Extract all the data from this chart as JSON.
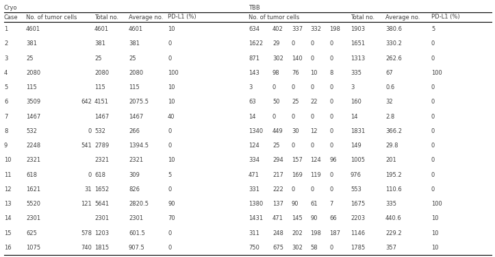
{
  "title_cryo": "Cryo",
  "title_tbb": "TBB",
  "cases": [
    1,
    2,
    3,
    4,
    5,
    6,
    7,
    8,
    9,
    10,
    11,
    12,
    13,
    14,
    15,
    16
  ],
  "cryo_data": [
    [
      "4601",
      "",
      "4601",
      "4601",
      "10"
    ],
    [
      "381",
      "",
      "381",
      "381",
      "0"
    ],
    [
      "25",
      "",
      "25",
      "25",
      "0"
    ],
    [
      "2080",
      "",
      "2080",
      "2080",
      "100"
    ],
    [
      "115",
      "",
      "115",
      "115",
      "10"
    ],
    [
      "3509",
      "642",
      "4151",
      "2075.5",
      "10"
    ],
    [
      "1467",
      "",
      "1467",
      "1467",
      "40"
    ],
    [
      "532",
      "0",
      "532",
      "266",
      "0"
    ],
    [
      "2248",
      "541",
      "2789",
      "1394.5",
      "0"
    ],
    [
      "2321",
      "",
      "2321",
      "2321",
      "10"
    ],
    [
      "618",
      "0",
      "618",
      "309",
      "5"
    ],
    [
      "1621",
      "31",
      "1652",
      "826",
      "0"
    ],
    [
      "5520",
      "121",
      "5641",
      "2820.5",
      "90"
    ],
    [
      "2301",
      "",
      "2301",
      "2301",
      "70"
    ],
    [
      "625",
      "578",
      "1203",
      "601.5",
      "0"
    ],
    [
      "1075",
      "740",
      "1815",
      "907.5",
      "0"
    ]
  ],
  "tbb_data": [
    [
      "634",
      "402",
      "337",
      "332",
      "198",
      "1903",
      "380.6",
      "5"
    ],
    [
      "1622",
      "29",
      "0",
      "0",
      "0",
      "1651",
      "330.2",
      "0"
    ],
    [
      "871",
      "302",
      "140",
      "0",
      "0",
      "1313",
      "262.6",
      "0"
    ],
    [
      "143",
      "98",
      "76",
      "10",
      "8",
      "335",
      "67",
      "100"
    ],
    [
      "3",
      "0",
      "0",
      "0",
      "0",
      "3",
      "0.6",
      "0"
    ],
    [
      "63",
      "50",
      "25",
      "22",
      "0",
      "160",
      "32",
      "0"
    ],
    [
      "14",
      "0",
      "0",
      "0",
      "0",
      "14",
      "2.8",
      "0"
    ],
    [
      "1340",
      "449",
      "30",
      "12",
      "0",
      "1831",
      "366.2",
      "0"
    ],
    [
      "124",
      "25",
      "0",
      "0",
      "0",
      "149",
      "29.8",
      "0"
    ],
    [
      "334",
      "294",
      "157",
      "124",
      "96",
      "1005",
      "201",
      "0"
    ],
    [
      "471",
      "217",
      "169",
      "119",
      "0",
      "976",
      "195.2",
      "0"
    ],
    [
      "331",
      "222",
      "0",
      "0",
      "0",
      "553",
      "110.6",
      "0"
    ],
    [
      "1380",
      "137",
      "90",
      "61",
      "7",
      "1675",
      "335",
      "100"
    ],
    [
      "1431",
      "471",
      "145",
      "90",
      "66",
      "2203",
      "440.6",
      "10"
    ],
    [
      "311",
      "248",
      "202",
      "198",
      "187",
      "1146",
      "229.2",
      "10"
    ],
    [
      "750",
      "675",
      "302",
      "58",
      "0",
      "1785",
      "357",
      "10"
    ]
  ],
  "bg_color": "#ffffff",
  "text_color": "#3f3f3f",
  "line_color": "#000000",
  "font_size": 6.0
}
